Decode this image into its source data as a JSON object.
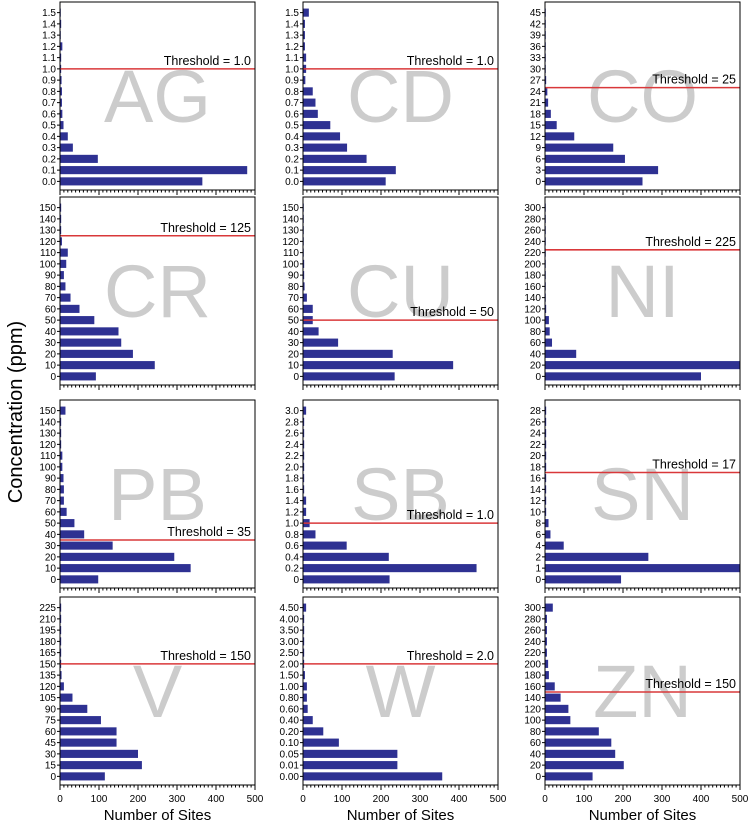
{
  "colors": {
    "bar": "#2e3192",
    "threshold": "#d9383a",
    "element_label": "#cccccc",
    "frame": "#000000"
  },
  "figure": {
    "ylabel": "Concentration (ppm)"
  },
  "chart_data": [
    {
      "type": "bar",
      "orientation": "horizontal",
      "element": "AG",
      "threshold": 1.0,
      "threshold_label": "Threshold = 1.0",
      "categories": [
        "0.0",
        "0.1",
        "0.2",
        "0.3",
        "0.4",
        "0.5",
        "0.6",
        "0.7",
        "0.8",
        "0.9",
        "1.0",
        "1.1",
        "1.2",
        "1.3",
        "1.4",
        "1.5"
      ],
      "values": [
        365,
        480,
        97,
        33,
        20,
        9,
        6,
        5,
        5,
        4,
        3,
        3,
        6,
        2,
        3,
        2
      ],
      "xlim": [
        0,
        500
      ],
      "xticks": [],
      "xlabel": ""
    },
    {
      "type": "bar",
      "orientation": "horizontal",
      "element": "CD",
      "threshold": 1.0,
      "threshold_label": "Threshold = 1.0",
      "categories": [
        "0.0",
        "0.1",
        "0.2",
        "0.3",
        "0.4",
        "0.5",
        "0.6",
        "0.7",
        "0.8",
        "0.9",
        "1.0",
        "1.1",
        "1.2",
        "1.3",
        "1.4",
        "1.5"
      ],
      "values": [
        212,
        238,
        163,
        113,
        95,
        70,
        38,
        32,
        25,
        6,
        8,
        8,
        5,
        5,
        5,
        15
      ],
      "xlim": [
        0,
        500
      ],
      "xticks": [],
      "xlabel": ""
    },
    {
      "type": "bar",
      "orientation": "horizontal",
      "element": "CO",
      "threshold": 25,
      "threshold_label": "Threshold = 25",
      "categories": [
        "0",
        "3",
        "6",
        "9",
        "12",
        "15",
        "18",
        "21",
        "24",
        "27",
        "30",
        "33",
        "36",
        "39",
        "42",
        "45"
      ],
      "values": [
        250,
        290,
        205,
        175,
        75,
        30,
        15,
        8,
        6,
        3,
        2,
        2,
        2,
        2,
        2,
        2
      ],
      "xlim": [
        0,
        500
      ],
      "xticks": [],
      "xlabel": ""
    },
    {
      "type": "bar",
      "orientation": "horizontal",
      "element": "CR",
      "threshold": 125,
      "threshold_label": "Threshold = 125",
      "categories": [
        "0",
        "10",
        "20",
        "30",
        "40",
        "50",
        "60",
        "70",
        "80",
        "90",
        "100",
        "110",
        "120",
        "130",
        "140",
        "150"
      ],
      "values": [
        92,
        243,
        187,
        157,
        150,
        88,
        50,
        27,
        14,
        10,
        16,
        20,
        5,
        3,
        3,
        3
      ],
      "xlim": [
        0,
        500
      ],
      "xticks": [],
      "xlabel": ""
    },
    {
      "type": "bar",
      "orientation": "horizontal",
      "element": "CU",
      "threshold": 50,
      "threshold_label": "Threshold = 50",
      "categories": [
        "0",
        "10",
        "20",
        "30",
        "40",
        "50",
        "60",
        "70",
        "80",
        "90",
        "100",
        "110",
        "120",
        "130",
        "140",
        "150"
      ],
      "values": [
        235,
        385,
        230,
        90,
        40,
        25,
        25,
        10,
        4,
        3,
        3,
        2,
        2,
        2,
        2,
        2
      ],
      "xlim": [
        0,
        500
      ],
      "xticks": [],
      "xlabel": ""
    },
    {
      "type": "bar",
      "orientation": "horizontal",
      "element": "NI",
      "threshold": 225,
      "threshold_label": "Threshold = 225",
      "categories": [
        "0",
        "20",
        "40",
        "60",
        "80",
        "100",
        "120",
        "140",
        "160",
        "180",
        "200",
        "220",
        "240",
        "260",
        "280",
        "300"
      ],
      "values": [
        400,
        500,
        80,
        18,
        12,
        10,
        3,
        2,
        2,
        2,
        2,
        2,
        2,
        2,
        2,
        2
      ],
      "xlim": [
        0,
        500
      ],
      "xticks": [],
      "xlabel": ""
    },
    {
      "type": "bar",
      "orientation": "horizontal",
      "element": "PB",
      "threshold": 35,
      "threshold_label": "Threshold = 35",
      "categories": [
        "0",
        "10",
        "20",
        "30",
        "40",
        "50",
        "60",
        "70",
        "80",
        "90",
        "100",
        "110",
        "120",
        "130",
        "140",
        "150"
      ],
      "values": [
        98,
        335,
        293,
        135,
        62,
        37,
        17,
        10,
        10,
        9,
        6,
        6,
        3,
        3,
        3,
        14
      ],
      "xlim": [
        0,
        500
      ],
      "xticks": [],
      "xlabel": ""
    },
    {
      "type": "bar",
      "orientation": "horizontal",
      "element": "SB",
      "threshold": 1.0,
      "threshold_label": "Threshold = 1.0",
      "categories": [
        "0",
        "0.2",
        "0.4",
        "0.6",
        "0.8",
        "1.0",
        "1.2",
        "1.4",
        "1.6",
        "1.8",
        "2.0",
        "2.2",
        "2.4",
        "2.6",
        "2.8",
        "3.0"
      ],
      "values": [
        222,
        445,
        220,
        112,
        32,
        17,
        8,
        8,
        3,
        3,
        3,
        3,
        3,
        3,
        3,
        8
      ],
      "xlim": [
        0,
        500
      ],
      "xticks": [],
      "xlabel": ""
    },
    {
      "type": "bar",
      "orientation": "horizontal",
      "element": "SN",
      "threshold": 17,
      "threshold_label": "Threshold = 17",
      "categories": [
        "0",
        "1",
        "2",
        "4",
        "6",
        "8",
        "10",
        "12",
        "14",
        "16",
        "18",
        "20",
        "22",
        "24",
        "26",
        "28"
      ],
      "values": [
        195,
        500,
        265,
        48,
        14,
        9,
        3,
        3,
        3,
        3,
        3,
        3,
        3,
        3,
        3,
        3
      ],
      "xlim": [
        0,
        500
      ],
      "xticks": [],
      "xlabel": ""
    },
    {
      "type": "bar",
      "orientation": "horizontal",
      "element": "V",
      "threshold": 150,
      "threshold_label": "Threshold = 150",
      "categories": [
        "0",
        "15",
        "30",
        "45",
        "60",
        "75",
        "90",
        "105",
        "120",
        "135",
        "150",
        "165",
        "180",
        "195",
        "210",
        "225"
      ],
      "values": [
        115,
        210,
        200,
        145,
        145,
        105,
        70,
        32,
        10,
        4,
        3,
        3,
        3,
        3,
        3,
        3
      ],
      "xlim": [
        0,
        500
      ],
      "xticks": [
        0,
        100,
        200,
        300,
        400,
        500
      ],
      "xlabel": "Number of Sites"
    },
    {
      "type": "bar",
      "orientation": "horizontal",
      "element": "W",
      "threshold": 2.0,
      "threshold_label": "Threshold = 2.0",
      "categories": [
        "0.00",
        "0.01",
        "0.05",
        "0.10",
        "0.20",
        "0.40",
        "0.60",
        "0.80",
        "1.00",
        "1.50",
        "2.00",
        "2.50",
        "3.00",
        "3.50",
        "4.00",
        "4.50"
      ],
      "values": [
        357,
        242,
        242,
        92,
        52,
        25,
        12,
        10,
        10,
        5,
        3,
        3,
        3,
        3,
        3,
        8
      ],
      "xlim": [
        0,
        500
      ],
      "xticks": [
        0,
        100,
        200,
        300,
        400,
        500
      ],
      "xlabel": "Number of Sites"
    },
    {
      "type": "bar",
      "orientation": "horizontal",
      "element": "ZN",
      "threshold": 150,
      "threshold_label": "Threshold = 150",
      "categories": [
        "0",
        "20",
        "40",
        "60",
        "80",
        "100",
        "120",
        "140",
        "160",
        "180",
        "200",
        "220",
        "240",
        "260",
        "280",
        "300"
      ],
      "values": [
        122,
        202,
        180,
        170,
        138,
        65,
        60,
        40,
        25,
        10,
        8,
        5,
        5,
        5,
        5,
        20
      ],
      "xlim": [
        0,
        500
      ],
      "xticks": [
        0,
        100,
        200,
        300,
        400,
        500
      ],
      "xlabel": "Number of Sites"
    }
  ]
}
